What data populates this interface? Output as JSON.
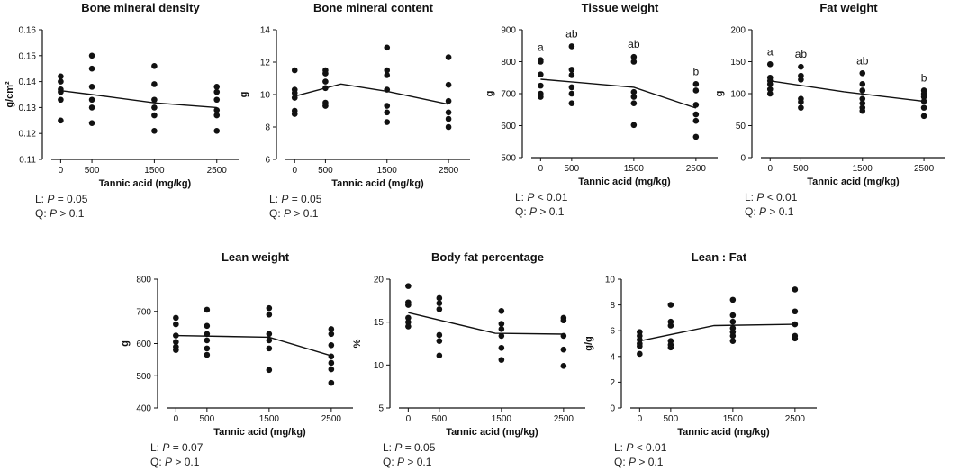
{
  "x_label": "Tannic acid (mg/kg)",
  "chart_data": [
    {
      "type": "scatter",
      "title": "Bone mineral density",
      "ylabel": "g/cm²",
      "xlabel": "Tannic acid (mg/kg)",
      "x_ticks": [
        0,
        500,
        1500,
        2500
      ],
      "xlim": [
        -150,
        2850
      ],
      "ylim": [
        0.11,
        0.16
      ],
      "y_ticks": [
        0.11,
        0.12,
        0.13,
        0.14,
        0.15,
        0.16
      ],
      "y_tick_labels": [
        "0.11",
        "0.12",
        "0.13",
        "0.14",
        "0.15",
        "0.16"
      ],
      "groups": [
        {
          "x": 0,
          "values": [
            0.142,
            0.14,
            0.137,
            0.136,
            0.133,
            0.125
          ],
          "letter": ""
        },
        {
          "x": 500,
          "values": [
            0.15,
            0.145,
            0.138,
            0.133,
            0.13,
            0.124
          ],
          "letter": ""
        },
        {
          "x": 1500,
          "values": [
            0.146,
            0.139,
            0.133,
            0.13,
            0.127,
            0.121
          ],
          "letter": ""
        },
        {
          "x": 2500,
          "values": [
            0.138,
            0.136,
            0.133,
            0.129,
            0.127,
            0.121
          ],
          "letter": ""
        }
      ],
      "fit_line": {
        "x": [
          0,
          500,
          1500,
          2500
        ],
        "y": [
          0.1365,
          0.135,
          0.1318,
          0.13
        ]
      },
      "stats": [
        {
          "label": "L: ",
          "p": "P",
          "rest": " = 0.05"
        },
        {
          "label": "Q: ",
          "p": "P",
          "rest": " > 0.1"
        }
      ]
    },
    {
      "type": "scatter",
      "title": "Bone mineral content",
      "ylabel": "g",
      "xlabel": "Tannic acid (mg/kg)",
      "x_ticks": [
        0,
        500,
        1500,
        2500
      ],
      "xlim": [
        -150,
        2850
      ],
      "ylim": [
        6,
        14
      ],
      "y_ticks": [
        6,
        8,
        10,
        12,
        14
      ],
      "y_tick_labels": [
        "6",
        "8",
        "10",
        "12",
        "14"
      ],
      "groups": [
        {
          "x": 0,
          "values": [
            11.5,
            10.3,
            10.1,
            9.8,
            9.0,
            8.8
          ],
          "letter": ""
        },
        {
          "x": 500,
          "values": [
            11.5,
            11.3,
            10.8,
            10.4,
            9.5,
            9.3
          ],
          "letter": ""
        },
        {
          "x": 1500,
          "values": [
            12.9,
            11.5,
            11.2,
            10.3,
            9.3,
            8.9,
            8.3
          ],
          "letter": ""
        },
        {
          "x": 2500,
          "values": [
            12.3,
            10.6,
            9.6,
            8.9,
            8.5,
            8.0
          ],
          "letter": ""
        }
      ],
      "fit_line": {
        "x": [
          0,
          750,
          1500,
          2500
        ],
        "y": [
          9.9,
          10.65,
          10.2,
          9.4
        ]
      },
      "stats": [
        {
          "label": "L: ",
          "p": "P",
          "rest": " = 0.05"
        },
        {
          "label": "Q: ",
          "p": "P",
          "rest": " > 0.1"
        }
      ]
    },
    {
      "type": "scatter",
      "title": "Tissue weight",
      "ylabel": "g",
      "xlabel": "Tannic acid (mg/kg)",
      "x_ticks": [
        0,
        500,
        1500,
        2500
      ],
      "xlim": [
        -150,
        2850
      ],
      "ylim": [
        500,
        900
      ],
      "y_ticks": [
        500,
        600,
        700,
        800,
        900
      ],
      "y_tick_labels": [
        "500",
        "600",
        "700",
        "800",
        "900"
      ],
      "groups": [
        {
          "x": 0,
          "values": [
            805,
            800,
            760,
            725,
            700,
            690
          ],
          "letter": "a"
        },
        {
          "x": 500,
          "values": [
            848,
            775,
            758,
            720,
            700,
            670
          ],
          "letter": "ab"
        },
        {
          "x": 1500,
          "values": [
            815,
            800,
            705,
            690,
            670,
            602
          ],
          "letter": "ab"
        },
        {
          "x": 2500,
          "values": [
            730,
            710,
            665,
            635,
            615,
            565
          ],
          "letter": "b"
        }
      ],
      "fit_line": {
        "x": [
          0,
          1500,
          2500
        ],
        "y": [
          745,
          720,
          655
        ]
      },
      "stats": [
        {
          "label": "L: ",
          "p": "P",
          "rest": " < 0.01"
        },
        {
          "label": "Q: ",
          "p": "P",
          "rest": " > 0.1"
        }
      ]
    },
    {
      "type": "scatter",
      "title": "Fat weight",
      "ylabel": "g",
      "xlabel": "Tannic acid (mg/kg)",
      "x_ticks": [
        0,
        500,
        1500,
        2500
      ],
      "xlim": [
        -150,
        2850
      ],
      "ylim": [
        0,
        200
      ],
      "y_ticks": [
        0,
        50,
        100,
        150,
        200
      ],
      "y_tick_labels": [
        "0",
        "50",
        "100",
        "150",
        "200"
      ],
      "groups": [
        {
          "x": 0,
          "values": [
            146,
            125,
            120,
            115,
            107,
            100
          ],
          "letter": "a"
        },
        {
          "x": 500,
          "values": [
            142,
            128,
            122,
            92,
            87,
            78
          ],
          "letter": "ab"
        },
        {
          "x": 1500,
          "values": [
            132,
            115,
            105,
            92,
            85,
            78,
            73
          ],
          "letter": "ab"
        },
        {
          "x": 2500,
          "values": [
            105,
            100,
            95,
            88,
            78,
            65
          ],
          "letter": "b"
        }
      ],
      "fit_line": {
        "x": [
          0,
          1200,
          2500
        ],
        "y": [
          120,
          103,
          88
        ]
      },
      "stats": [
        {
          "label": "L: ",
          "p": "P",
          "rest": " < 0.01"
        },
        {
          "label": "Q: ",
          "p": "P",
          "rest": " > 0.1"
        }
      ]
    },
    {
      "type": "scatter",
      "title": "Lean weight",
      "ylabel": "g",
      "xlabel": "Tannic acid (mg/kg)",
      "x_ticks": [
        0,
        500,
        1500,
        2500
      ],
      "xlim": [
        -150,
        2850
      ],
      "ylim": [
        400,
        800
      ],
      "y_ticks": [
        400,
        500,
        600,
        700,
        800
      ],
      "y_tick_labels": [
        "400",
        "500",
        "600",
        "700",
        "800"
      ],
      "groups": [
        {
          "x": 0,
          "values": [
            680,
            660,
            625,
            605,
            590,
            580
          ],
          "letter": ""
        },
        {
          "x": 500,
          "values": [
            705,
            655,
            630,
            610,
            585,
            565
          ],
          "letter": ""
        },
        {
          "x": 1500,
          "values": [
            710,
            690,
            630,
            610,
            585,
            518
          ],
          "letter": ""
        },
        {
          "x": 2500,
          "values": [
            645,
            630,
            595,
            560,
            540,
            520,
            478
          ],
          "letter": ""
        }
      ],
      "fit_line": {
        "x": [
          0,
          1500,
          2500
        ],
        "y": [
          625,
          620,
          562
        ]
      },
      "stats": [
        {
          "label": "L: ",
          "p": "P",
          "rest": " = 0.07"
        },
        {
          "label": "Q: ",
          "p": "P",
          "rest": " > 0.1"
        }
      ]
    },
    {
      "type": "scatter",
      "title": "Body fat percentage",
      "ylabel": "%",
      "xlabel": "Tannic acid (mg/kg)",
      "x_ticks": [
        0,
        500,
        1500,
        2500
      ],
      "xlim": [
        -150,
        2850
      ],
      "ylim": [
        5,
        20
      ],
      "y_ticks": [
        5,
        10,
        15,
        20
      ],
      "y_tick_labels": [
        "5",
        "10",
        "15",
        "20"
      ],
      "groups": [
        {
          "x": 0,
          "values": [
            19.2,
            17.3,
            17.0,
            15.5,
            15.0,
            14.5
          ],
          "letter": ""
        },
        {
          "x": 500,
          "values": [
            17.8,
            17.2,
            16.5,
            13.5,
            12.8,
            11.1
          ],
          "letter": ""
        },
        {
          "x": 1500,
          "values": [
            16.3,
            14.8,
            14.2,
            13.4,
            12.0,
            10.6
          ],
          "letter": ""
        },
        {
          "x": 2500,
          "values": [
            15.5,
            15.2,
            13.4,
            11.8,
            9.9
          ],
          "letter": ""
        }
      ],
      "fit_line": {
        "x": [
          0,
          1400,
          2500
        ],
        "y": [
          16.1,
          13.7,
          13.6
        ]
      },
      "stats": [
        {
          "label": "L: ",
          "p": "P",
          "rest": " = 0.05"
        },
        {
          "label": "Q: ",
          "p": "P",
          "rest": " > 0.1"
        }
      ]
    },
    {
      "type": "scatter",
      "title": "Lean : Fat",
      "ylabel": "g/g",
      "xlabel": "Tannic acid (mg/kg)",
      "x_ticks": [
        0,
        500,
        1500,
        2500
      ],
      "xlim": [
        -150,
        2850
      ],
      "ylim": [
        0,
        10
      ],
      "y_ticks": [
        0,
        2,
        4,
        6,
        8,
        10
      ],
      "y_tick_labels": [
        "0",
        "2",
        "4",
        "6",
        "8",
        "10"
      ],
      "groups": [
        {
          "x": 0,
          "values": [
            5.9,
            5.6,
            5.3,
            5.0,
            4.8,
            4.2
          ],
          "letter": ""
        },
        {
          "x": 500,
          "values": [
            8.0,
            6.7,
            6.4,
            5.2,
            4.9,
            4.7
          ],
          "letter": ""
        },
        {
          "x": 1500,
          "values": [
            8.4,
            7.2,
            6.7,
            6.2,
            5.9,
            5.6,
            5.2
          ],
          "letter": ""
        },
        {
          "x": 2500,
          "values": [
            9.2,
            7.5,
            6.5,
            5.6,
            5.4
          ],
          "letter": ""
        }
      ],
      "fit_line": {
        "x": [
          0,
          1200,
          2500
        ],
        "y": [
          5.2,
          6.4,
          6.5
        ]
      },
      "stats": [
        {
          "label": "L: ",
          "p": "P",
          "rest": " < 0.01"
        },
        {
          "label": "Q: ",
          "p": "P",
          "rest": " > 0.1"
        }
      ]
    }
  ]
}
